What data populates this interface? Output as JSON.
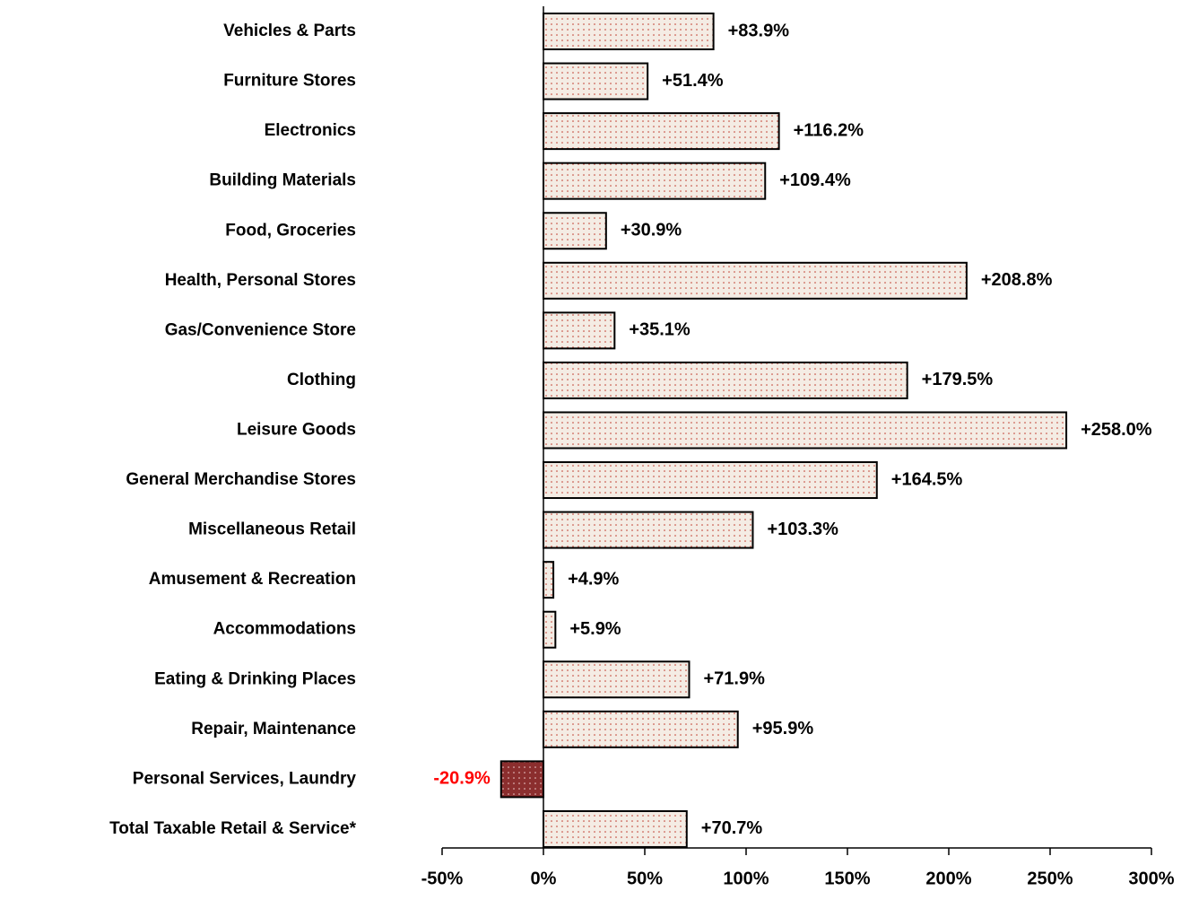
{
  "chart_data": {
    "type": "bar",
    "orientation": "horizontal",
    "categories": [
      "Vehicles & Parts",
      "Furniture Stores",
      "Electronics",
      "Building Materials",
      "Food, Groceries",
      "Health, Personal Stores",
      "Gas/Convenience Store",
      "Clothing",
      "Leisure Goods",
      "General Merchandise Stores",
      "Miscellaneous Retail",
      "Amusement & Recreation",
      "Accommodations",
      "Eating & Drinking Places",
      "Repair, Maintenance",
      "Personal Services, Laundry",
      "Total Taxable Retail & Service*"
    ],
    "values": [
      83.9,
      51.4,
      116.2,
      109.4,
      30.9,
      208.8,
      35.1,
      179.5,
      258.0,
      164.5,
      103.3,
      4.9,
      5.9,
      71.9,
      95.9,
      -20.9,
      70.7
    ],
    "value_labels": [
      "+83.9%",
      "+51.4%",
      "+116.2%",
      "+109.4%",
      "+30.9%",
      "+208.8%",
      "+35.1%",
      "+179.5%",
      "+258.0%",
      "+164.5%",
      "+103.3%",
      "+4.9%",
      "+5.9%",
      "+71.9%",
      "+95.9%",
      "-20.9%",
      "+70.7%"
    ],
    "color": "#f4ece4",
    "negative_color": "#8b2e2e",
    "label_color": "#000000",
    "negative_label_color": "#ff0000",
    "xlim": [
      -50,
      300
    ],
    "xticks": [
      {
        "value": -50,
        "label": "-50%"
      },
      {
        "value": 0,
        "label": "0%"
      },
      {
        "value": 50,
        "label": "50%"
      },
      {
        "value": 100,
        "label": "100%"
      },
      {
        "value": 150,
        "label": "150%"
      },
      {
        "value": 200,
        "label": "200%"
      },
      {
        "value": 250,
        "label": "250%"
      },
      {
        "value": 300,
        "label": "300%"
      }
    ]
  }
}
